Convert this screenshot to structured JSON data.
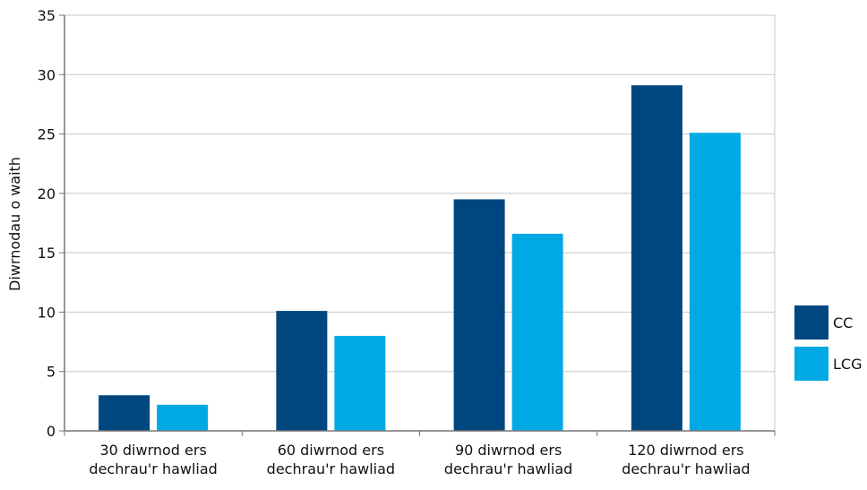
{
  "chart_data": {
    "type": "bar",
    "title": "",
    "xlabel": "",
    "ylabel": "Diwrnodau o waith",
    "ylim": [
      0,
      35
    ],
    "yticks": [
      0,
      5,
      10,
      15,
      20,
      25,
      30,
      35
    ],
    "grid": true,
    "legend_position": "right",
    "categories": [
      [
        "30 diwrnod ers",
        "dechrau'r hawliad"
      ],
      [
        "60 diwrnod ers",
        "dechrau'r hawliad"
      ],
      [
        "90 diwrnod ers",
        "dechrau'r hawliad"
      ],
      [
        "120 diwrnod ers",
        "dechrau'r hawliad"
      ]
    ],
    "series": [
      {
        "name": "CC",
        "color": "#00467f",
        "values": [
          3,
          10.1,
          19.5,
          29.1
        ]
      },
      {
        "name": "LCG",
        "color": "#00a9e4",
        "values": [
          2.2,
          8.0,
          16.6,
          25.1
        ]
      }
    ]
  }
}
